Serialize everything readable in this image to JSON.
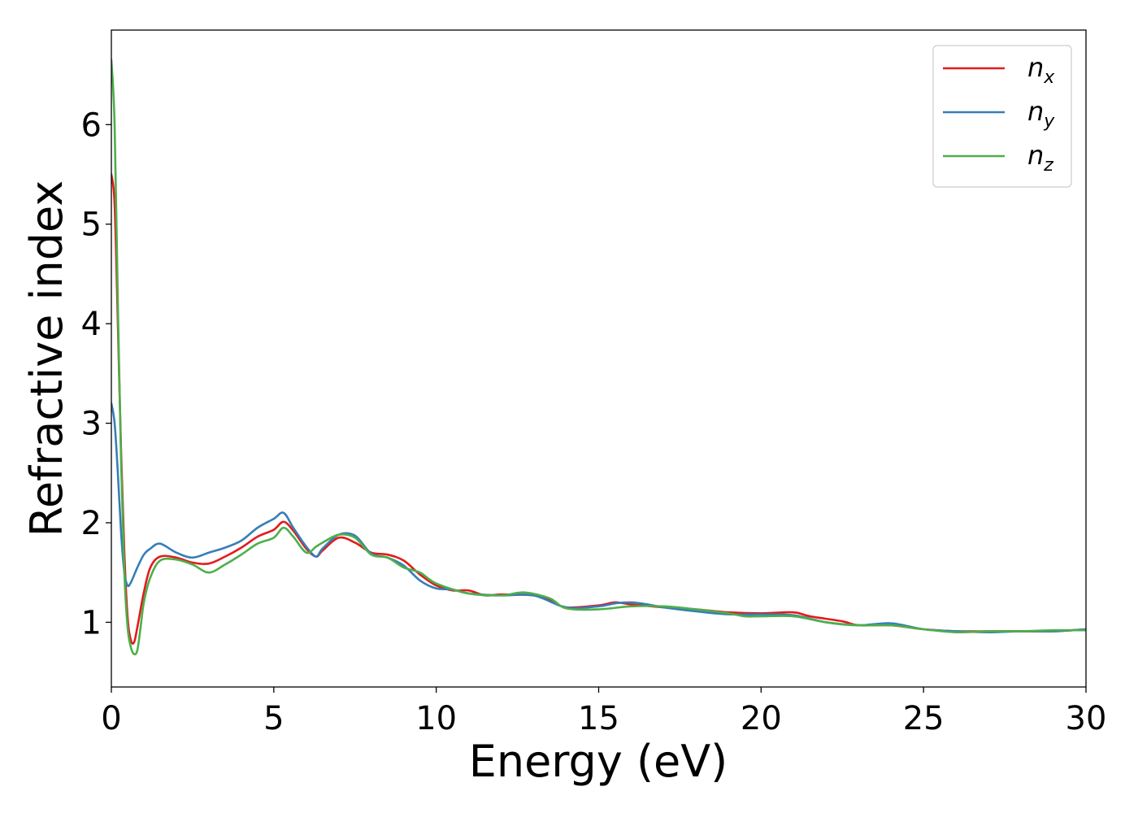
{
  "chart_data": {
    "type": "line",
    "xlabel": "Energy (eV)",
    "ylabel": "Refractive index",
    "xlim": [
      0,
      30
    ],
    "ylim": [
      0.35,
      6.95
    ],
    "xticks": [
      0,
      5,
      10,
      15,
      20,
      25,
      30
    ],
    "xtick_labels": [
      "0",
      "5",
      "10",
      "15",
      "20",
      "25",
      "30"
    ],
    "yticks": [
      1,
      2,
      3,
      4,
      5,
      6
    ],
    "ytick_labels": [
      "1",
      "2",
      "3",
      "4",
      "5",
      "6"
    ],
    "grid": false,
    "legend_position": "top-right",
    "series": [
      {
        "name": "n_x",
        "label_base": "n",
        "label_sub": "x",
        "color": "#e41a1c",
        "x": [
          0,
          0.1,
          0.2,
          0.3,
          0.4,
          0.5,
          0.6,
          0.7,
          0.8,
          1.0,
          1.2,
          1.5,
          2.0,
          2.5,
          3.0,
          3.5,
          4.0,
          4.5,
          5.0,
          5.3,
          5.6,
          6.0,
          6.3,
          6.5,
          7.0,
          7.5,
          8.0,
          8.5,
          9.0,
          9.5,
          10.0,
          10.5,
          11.0,
          11.5,
          12.0,
          13.0,
          13.5,
          14.0,
          15.0,
          15.5,
          16.0,
          17.0,
          18.0,
          19.0,
          20.0,
          21.0,
          21.5,
          22.5,
          23.0,
          24.0,
          25.0,
          26.0,
          27.0,
          28.0,
          29.0,
          30.0
        ],
        "y": [
          5.5,
          5.2,
          4.0,
          2.7,
          1.7,
          1.05,
          0.82,
          0.8,
          0.95,
          1.3,
          1.55,
          1.66,
          1.65,
          1.6,
          1.59,
          1.66,
          1.75,
          1.86,
          1.93,
          2.01,
          1.92,
          1.74,
          1.66,
          1.72,
          1.85,
          1.8,
          1.7,
          1.68,
          1.62,
          1.48,
          1.37,
          1.32,
          1.32,
          1.27,
          1.28,
          1.27,
          1.22,
          1.15,
          1.17,
          1.2,
          1.18,
          1.15,
          1.13,
          1.1,
          1.09,
          1.1,
          1.06,
          1.01,
          0.97,
          0.97,
          0.93,
          0.91,
          0.91,
          0.91,
          0.91,
          0.93
        ]
      },
      {
        "name": "n_y",
        "label_base": "n",
        "label_sub": "y",
        "color": "#377eb8",
        "x": [
          0,
          0.1,
          0.2,
          0.3,
          0.4,
          0.5,
          0.6,
          0.8,
          1.0,
          1.2,
          1.5,
          2.0,
          2.5,
          3.0,
          3.5,
          4.0,
          4.5,
          5.0,
          5.3,
          5.6,
          6.0,
          6.3,
          6.5,
          7.0,
          7.5,
          8.0,
          8.5,
          9.0,
          9.5,
          10.0,
          10.5,
          11.0,
          12.0,
          13.0,
          14.0,
          15.0,
          15.5,
          16.0,
          16.5,
          17.0,
          18.0,
          19.0,
          20.0,
          21.0,
          22.0,
          23.0,
          24.0,
          25.0,
          26.0,
          27.0,
          28.0,
          29.0,
          30.0
        ],
        "y": [
          3.2,
          3.0,
          2.5,
          1.9,
          1.5,
          1.37,
          1.4,
          1.55,
          1.68,
          1.74,
          1.79,
          1.7,
          1.65,
          1.7,
          1.75,
          1.82,
          1.95,
          2.04,
          2.1,
          1.95,
          1.76,
          1.66,
          1.74,
          1.88,
          1.87,
          1.69,
          1.65,
          1.57,
          1.42,
          1.34,
          1.33,
          1.29,
          1.27,
          1.27,
          1.15,
          1.16,
          1.19,
          1.2,
          1.18,
          1.15,
          1.11,
          1.08,
          1.08,
          1.07,
          1.0,
          0.97,
          0.99,
          0.93,
          0.91,
          0.9,
          0.91,
          0.91,
          0.93
        ]
      },
      {
        "name": "n_z",
        "label_base": "n",
        "label_sub": "z",
        "color": "#4daf4a",
        "x": [
          0,
          0.1,
          0.2,
          0.3,
          0.4,
          0.5,
          0.6,
          0.7,
          0.8,
          0.9,
          1.0,
          1.2,
          1.5,
          2.0,
          2.5,
          3.0,
          3.5,
          4.0,
          4.5,
          5.0,
          5.3,
          5.6,
          6.0,
          6.3,
          6.5,
          7.0,
          7.5,
          8.0,
          8.5,
          9.0,
          9.5,
          10.0,
          11.0,
          12.0,
          12.7,
          13.5,
          14.0,
          15.0,
          16.0,
          17.0,
          18.0,
          19.0,
          19.5,
          20.0,
          21.0,
          22.0,
          23.0,
          24.0,
          25.0,
          26.0,
          27.0,
          28.0,
          29.0,
          30.0
        ],
        "y": [
          6.65,
          6.0,
          4.2,
          2.6,
          1.5,
          0.95,
          0.75,
          0.68,
          0.72,
          0.95,
          1.2,
          1.45,
          1.62,
          1.63,
          1.58,
          1.5,
          1.58,
          1.68,
          1.79,
          1.85,
          1.95,
          1.86,
          1.7,
          1.76,
          1.8,
          1.88,
          1.85,
          1.68,
          1.65,
          1.55,
          1.5,
          1.39,
          1.29,
          1.27,
          1.3,
          1.24,
          1.14,
          1.13,
          1.16,
          1.16,
          1.13,
          1.09,
          1.06,
          1.06,
          1.06,
          1.0,
          0.97,
          0.97,
          0.93,
          0.9,
          0.91,
          0.91,
          0.92,
          0.92
        ]
      }
    ]
  }
}
